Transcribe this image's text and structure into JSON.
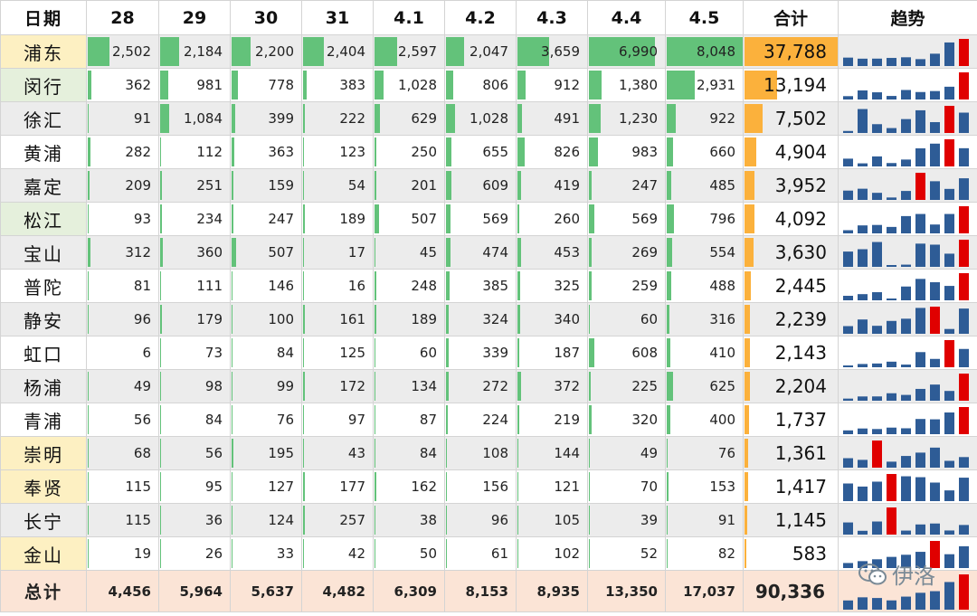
{
  "headers": {
    "name": "日期",
    "dates": [
      "28",
      "29",
      "30",
      "31",
      "4.1",
      "4.2",
      "4.3",
      "4.4",
      "4.5"
    ],
    "total": "合计",
    "trend": "趋势"
  },
  "colors": {
    "bar": "#63c27a",
    "total_bar": "#fbb13c",
    "spark": "#2e5c96",
    "spark_max": "#e00000",
    "hl_yellow": "#fdf0c2",
    "hl_green": "#e5f0dc",
    "footer": "#fbe4d6"
  },
  "rows": [
    {
      "name": "浦东",
      "highlight": "yellow",
      "values": [
        2502,
        2184,
        2200,
        2404,
        2597,
        2047,
        3659,
        6990,
        8048
      ],
      "labels": [
        "2,502",
        "2,184",
        "2,200",
        "2,404",
        "2,597",
        "2,047",
        "3,659",
        "6,990",
        "8,048"
      ],
      "total": 37788,
      "total_label": "37,788"
    },
    {
      "name": "闵行",
      "highlight": "green",
      "values": [
        362,
        981,
        778,
        383,
        1028,
        806,
        912,
        1380,
        2931
      ],
      "labels": [
        "362",
        "981",
        "778",
        "383",
        "1,028",
        "806",
        "912",
        "1,380",
        "2,931"
      ],
      "total": 13194,
      "total_label": "13,194"
    },
    {
      "name": "徐汇",
      "highlight": "none",
      "values": [
        91,
        1084,
        399,
        222,
        629,
        1028,
        491,
        1230,
        922
      ],
      "labels": [
        "91",
        "1,084",
        "399",
        "222",
        "629",
        "1,028",
        "491",
        "1,230",
        "922"
      ],
      "total": 7502,
      "total_label": "7,502"
    },
    {
      "name": "黄浦",
      "highlight": "none",
      "values": [
        282,
        112,
        363,
        123,
        250,
        655,
        826,
        983,
        660
      ],
      "labels": [
        "282",
        "112",
        "363",
        "123",
        "250",
        "655",
        "826",
        "983",
        "660"
      ],
      "total": 4904,
      "total_label": "4,904"
    },
    {
      "name": "嘉定",
      "highlight": "none",
      "values": [
        209,
        251,
        159,
        54,
        201,
        609,
        419,
        247,
        485
      ],
      "labels": [
        "209",
        "251",
        "159",
        "54",
        "201",
        "609",
        "419",
        "247",
        "485"
      ],
      "total": 3952,
      "total_label": "3,952"
    },
    {
      "name": "松江",
      "highlight": "green",
      "values": [
        93,
        234,
        247,
        189,
        507,
        569,
        260,
        569,
        796
      ],
      "labels": [
        "93",
        "234",
        "247",
        "189",
        "507",
        "569",
        "260",
        "569",
        "796"
      ],
      "total": 4092,
      "total_label": "4,092"
    },
    {
      "name": "宝山",
      "highlight": "none",
      "values": [
        312,
        360,
        507,
        17,
        45,
        474,
        453,
        269,
        554
      ],
      "labels": [
        "312",
        "360",
        "507",
        "17",
        "45",
        "474",
        "453",
        "269",
        "554"
      ],
      "total": 3630,
      "total_label": "3,630"
    },
    {
      "name": "普陀",
      "highlight": "none",
      "values": [
        81,
        111,
        146,
        16,
        248,
        385,
        325,
        259,
        488
      ],
      "labels": [
        "81",
        "111",
        "146",
        "16",
        "248",
        "385",
        "325",
        "259",
        "488"
      ],
      "total": 2445,
      "total_label": "2,445"
    },
    {
      "name": "静安",
      "highlight": "none",
      "values": [
        96,
        179,
        100,
        161,
        189,
        324,
        340,
        60,
        316
      ],
      "labels": [
        "96",
        "179",
        "100",
        "161",
        "189",
        "324",
        "340",
        "60",
        "316"
      ],
      "total": 2239,
      "total_label": "2,239"
    },
    {
      "name": "虹口",
      "highlight": "none",
      "values": [
        6,
        73,
        84,
        125,
        60,
        339,
        187,
        608,
        410
      ],
      "labels": [
        "6",
        "73",
        "84",
        "125",
        "60",
        "339",
        "187",
        "608",
        "410"
      ],
      "total": 2143,
      "total_label": "2,143"
    },
    {
      "name": "杨浦",
      "highlight": "none",
      "values": [
        49,
        98,
        99,
        172,
        134,
        272,
        372,
        225,
        625
      ],
      "labels": [
        "49",
        "98",
        "99",
        "172",
        "134",
        "272",
        "372",
        "225",
        "625"
      ],
      "total": 2204,
      "total_label": "2,204"
    },
    {
      "name": "青浦",
      "highlight": "none",
      "values": [
        56,
        84,
        76,
        97,
        87,
        224,
        219,
        320,
        400
      ],
      "labels": [
        "56",
        "84",
        "76",
        "97",
        "87",
        "224",
        "219",
        "320",
        "400"
      ],
      "total": 1737,
      "total_label": "1,737"
    },
    {
      "name": "崇明",
      "highlight": "yellow",
      "values": [
        68,
        56,
        195,
        43,
        84,
        108,
        144,
        49,
        76
      ],
      "labels": [
        "68",
        "56",
        "195",
        "43",
        "84",
        "108",
        "144",
        "49",
        "76"
      ],
      "total": 1361,
      "total_label": "1,361"
    },
    {
      "name": "奉贤",
      "highlight": "yellow",
      "values": [
        115,
        95,
        127,
        177,
        162,
        156,
        121,
        70,
        153
      ],
      "labels": [
        "115",
        "95",
        "127",
        "177",
        "162",
        "156",
        "121",
        "70",
        "153"
      ],
      "total": 1417,
      "total_label": "1,417"
    },
    {
      "name": "长宁",
      "highlight": "none",
      "values": [
        115,
        36,
        124,
        257,
        38,
        96,
        105,
        39,
        91
      ],
      "labels": [
        "115",
        "36",
        "124",
        "257",
        "38",
        "96",
        "105",
        "39",
        "91"
      ],
      "total": 1145,
      "total_label": "1,145"
    },
    {
      "name": "金山",
      "highlight": "yellow",
      "values": [
        19,
        26,
        33,
        42,
        50,
        61,
        102,
        52,
        82
      ],
      "labels": [
        "19",
        "26",
        "33",
        "42",
        "50",
        "61",
        "102",
        "52",
        "82"
      ],
      "total": 583,
      "total_label": "583"
    }
  ],
  "footer": {
    "label": "总计",
    "values": [
      4456,
      5964,
      5637,
      4482,
      6309,
      8153,
      8935,
      13350,
      17037
    ],
    "labels": [
      "4,456",
      "5,964",
      "5,637",
      "4,482",
      "6,309",
      "8,153",
      "8,935",
      "13,350",
      "17,037"
    ],
    "grand_total": "90,336"
  },
  "watermark": {
    "icon": "wechat-icon",
    "text": "伊洛"
  }
}
